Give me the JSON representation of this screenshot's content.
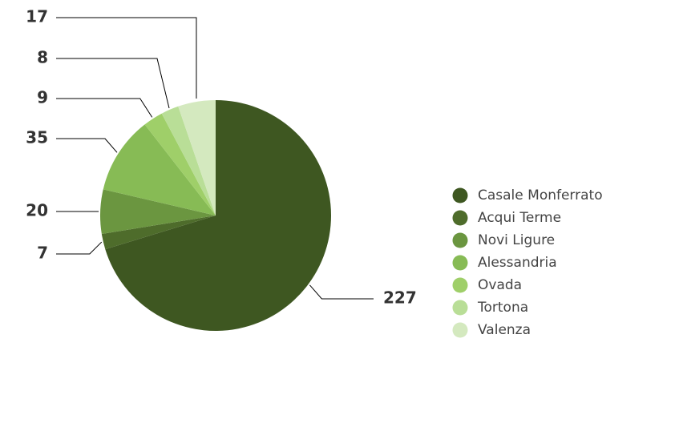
{
  "chart_data": {
    "type": "pie",
    "title": "",
    "legend_position": "right",
    "slices": [
      {
        "label": "Casale Monferrato",
        "value": 227,
        "color": "#3e5721"
      },
      {
        "label": "Acqui Terme",
        "value": 7,
        "color": "#4e6c2b"
      },
      {
        "label": "Novi Ligure",
        "value": 20,
        "color": "#6b9640"
      },
      {
        "label": "Alessandria",
        "value": 35,
        "color": "#87bb55"
      },
      {
        "label": "Ovada",
        "value": 9,
        "color": "#9fcf69"
      },
      {
        "label": "Tortona",
        "value": 8,
        "color": "#b9de97"
      },
      {
        "label": "Valenza",
        "value": 17,
        "color": "#d4e9bf"
      }
    ]
  }
}
